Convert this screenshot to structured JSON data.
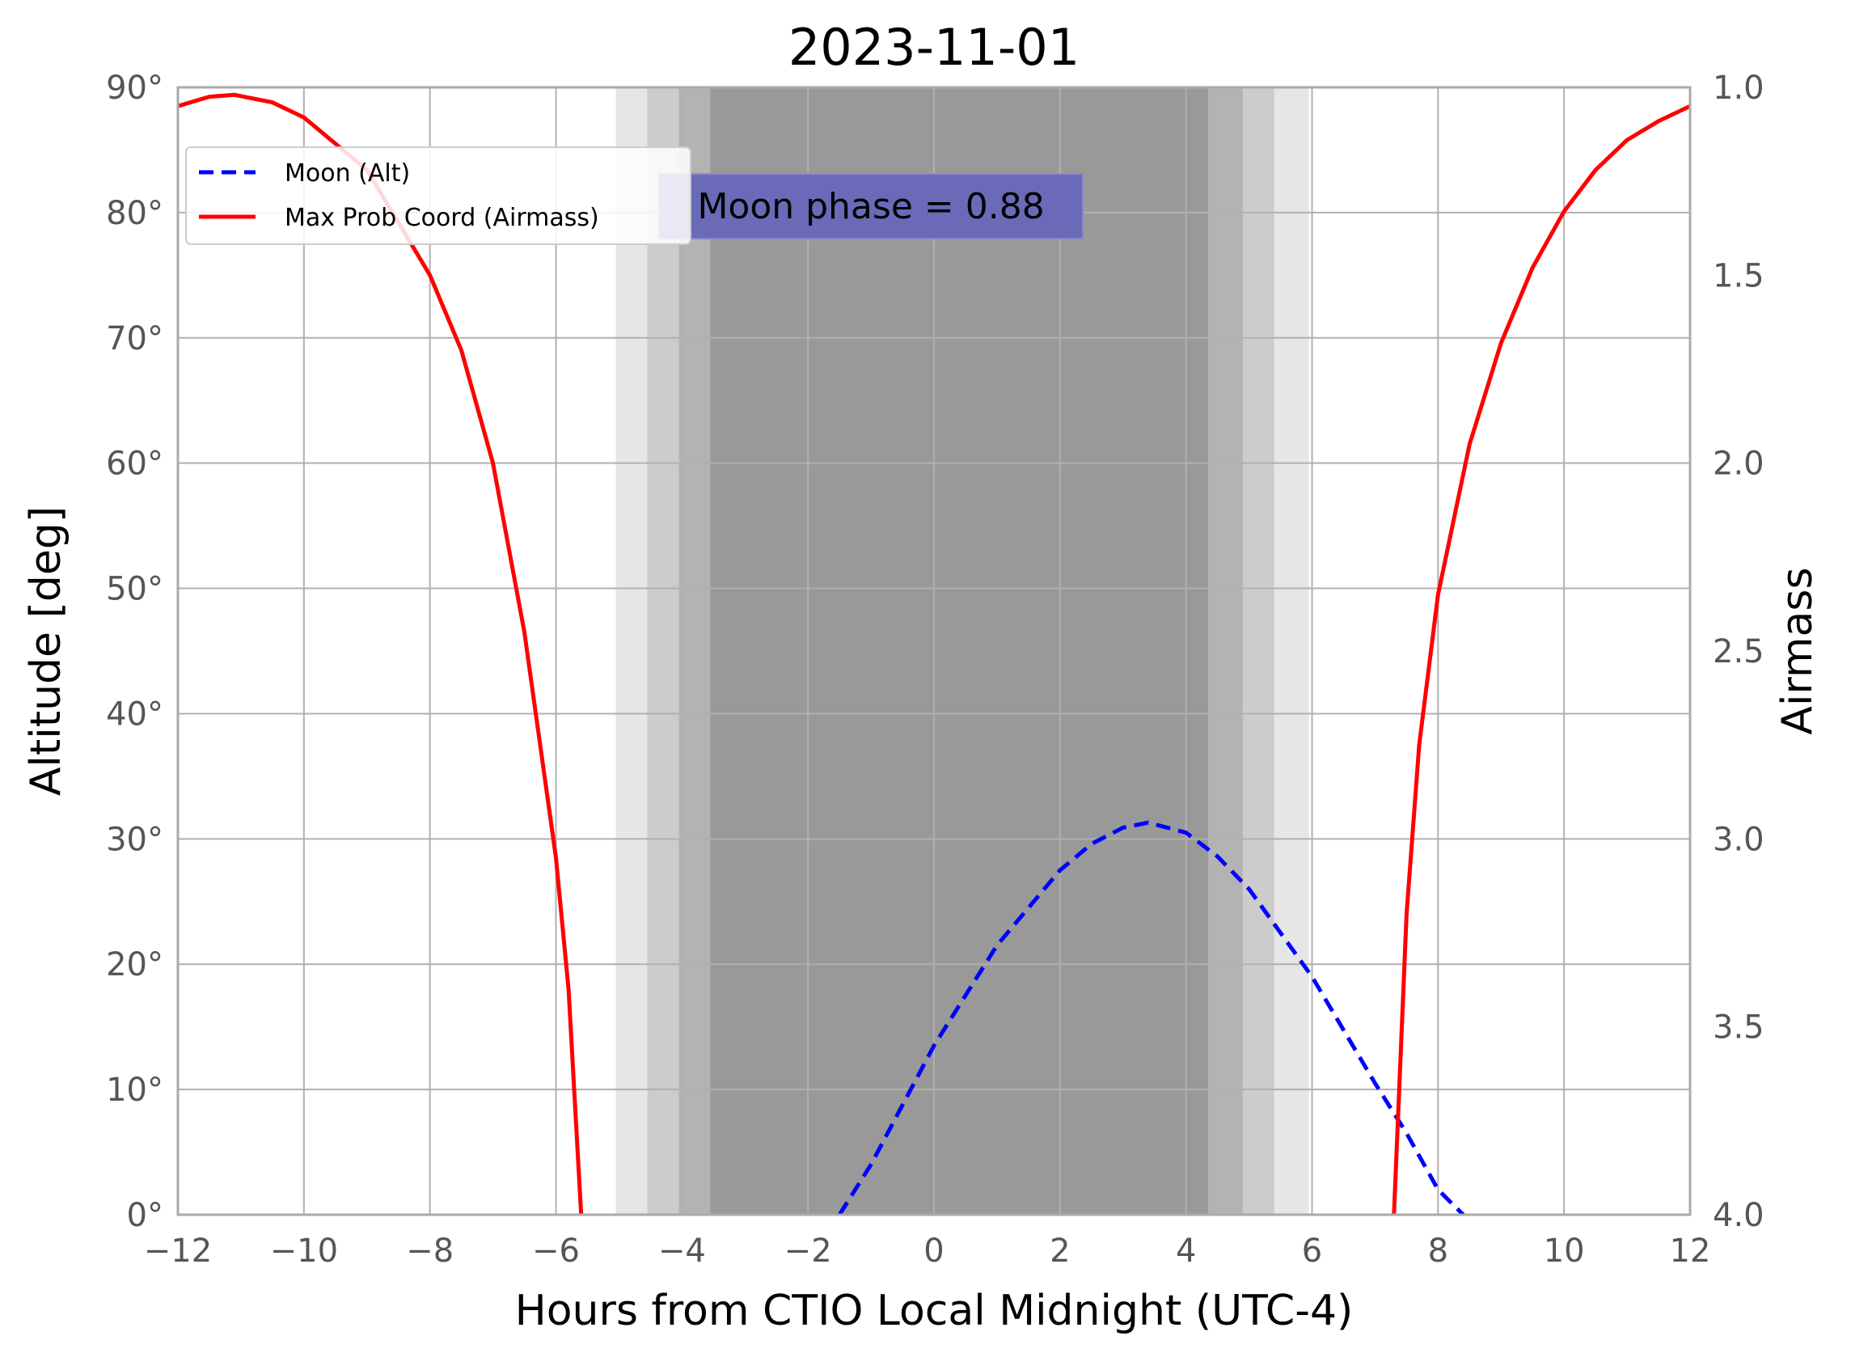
{
  "chart_data": {
    "type": "line",
    "title": "2023-11-01",
    "xlabel": "Hours from CTIO Local Midnight (UTC-4)",
    "ylabel": "Altitude [deg]",
    "ylabel_right": "Airmass",
    "xlim": [
      -12,
      12
    ],
    "ylim": [
      0,
      90
    ],
    "y2lim": [
      1.0,
      4.0
    ],
    "x_ticks": [
      -12,
      -10,
      -8,
      -6,
      -4,
      -2,
      0,
      2,
      4,
      6,
      8,
      10,
      12
    ],
    "x_tick_labels": [
      "−12",
      "−10",
      "−8",
      "−6",
      "−4",
      "−2",
      "0",
      "2",
      "4",
      "6",
      "8",
      "10",
      "12"
    ],
    "y_ticks": [
      0,
      10,
      20,
      30,
      40,
      50,
      60,
      70,
      80,
      90
    ],
    "y_tick_labels": [
      "0°",
      "10°",
      "20°",
      "30°",
      "40°",
      "50°",
      "60°",
      "70°",
      "80°",
      "90°"
    ],
    "y2_ticks": [
      1.0,
      1.5,
      2.0,
      2.5,
      3.0,
      3.5,
      4.0
    ],
    "y2_tick_labels": [
      "1.0",
      "1.5",
      "2.0",
      "2.5",
      "3.0",
      "3.5",
      "4.0"
    ],
    "grid": true,
    "legend_placement": "upper-left",
    "twilight_bands": [
      {
        "x0": -5.05,
        "x1": 5.95,
        "color": "#e6e6e6"
      },
      {
        "x0": -4.55,
        "x1": 5.4,
        "color": "#cccccc"
      },
      {
        "x0": -4.05,
        "x1": 4.9,
        "color": "#b3b3b3"
      },
      {
        "x0": -3.55,
        "x1": 4.35,
        "color": "#999999"
      }
    ],
    "series": [
      {
        "name": "Moon (Alt)",
        "axis": "left",
        "color": "#0000ff",
        "style": "dashed",
        "x": [
          -1.5,
          -1.0,
          0.0,
          1.0,
          2.0,
          2.5,
          3.0,
          3.4,
          4.0,
          4.5,
          5.0,
          6.0,
          7.0,
          7.5,
          8.0,
          8.4
        ],
        "y": [
          0,
          4,
          13.5,
          21.5,
          27.5,
          29.6,
          30.9,
          31.3,
          30.5,
          28.6,
          26,
          19,
          10.5,
          6.5,
          2,
          0
        ]
      },
      {
        "name": "Max Prob Coord (Airmass)",
        "axis": "right",
        "color": "#ff0000",
        "style": "solid",
        "segments": [
          {
            "x": [
              -12,
              -11.5,
              -11.1,
              -10.5,
              -10.0,
              -9.0,
              -8.0,
              -7.5,
              -7.0,
              -6.5,
              -6.0,
              -5.8,
              -5.6
            ],
            "y": [
              1.05,
              1.025,
              1.02,
              1.04,
              1.08,
              1.22,
              1.5,
              1.7,
              2.0,
              2.45,
              3.05,
              3.4,
              4.0
            ]
          },
          {
            "x": [
              7.3,
              7.5,
              7.7,
              8.0,
              8.5,
              9.0,
              9.5,
              10.0,
              10.5,
              11.0,
              11.5,
              12.0
            ],
            "y": [
              4.0,
              3.2,
              2.75,
              2.35,
              1.95,
              1.68,
              1.48,
              1.33,
              1.22,
              1.14,
              1.09,
              1.05
            ]
          }
        ]
      }
    ],
    "annotation": {
      "text": "Moon phase = 0.88",
      "x": -1.0,
      "y": 80.5,
      "box_color": "#6a6ab8"
    }
  }
}
